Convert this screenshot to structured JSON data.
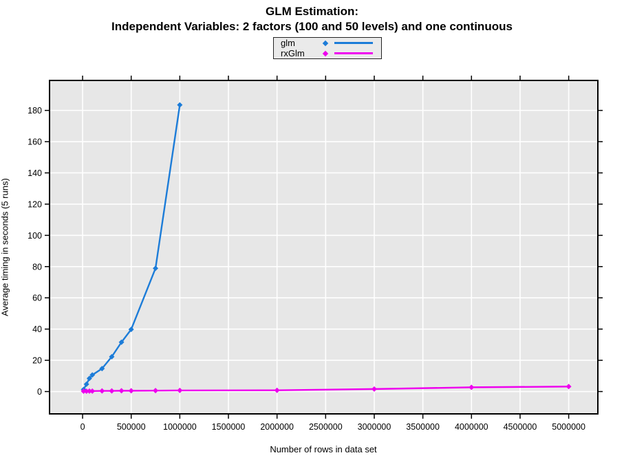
{
  "figure": {
    "title_line1": "GLM Estimation:",
    "title_line2": "Independent Variables: 2 factors (100 and 50 levels) and one continuous"
  },
  "legend": {
    "position": "top-center",
    "items": [
      {
        "label": "glm",
        "color": "#1c7cd8",
        "marker": "diamond-icon"
      },
      {
        "label": "rxGlm",
        "color": "#ee00ee",
        "marker": "diamond-icon"
      }
    ]
  },
  "chart_data": {
    "type": "line",
    "title": "GLM Estimation: Independent Variables: 2 factors (100 and 50 levels) and one continuous",
    "xlabel": "Number of rows in data set",
    "ylabel": "Average timing in seconds (5 runs)",
    "panel_bg": "#e7e7e7",
    "grid_color": "#ffffff",
    "grid": true,
    "x_ticks": [
      0,
      500000,
      1000000,
      1500000,
      2000000,
      2500000,
      3000000,
      3500000,
      4000000,
      4500000,
      5000000
    ],
    "x_tick_labels": [
      "0",
      "500000",
      "1000000",
      "1500000",
      "2000000",
      "2500000",
      "3000000",
      "3500000",
      "4000000",
      "4500000",
      "5000000"
    ],
    "y_ticks": [
      0,
      20,
      40,
      60,
      80,
      100,
      120,
      140,
      160,
      180
    ],
    "y_tick_labels": [
      "0",
      "20",
      "40",
      "60",
      "80",
      "100",
      "120",
      "140",
      "160",
      "180"
    ],
    "x_range": [
      -340000,
      5300000
    ],
    "y_range": [
      -14.3,
      199.2
    ],
    "series": [
      {
        "name": "glm",
        "color": "#1c7cd8",
        "marker": "diamond",
        "x": [
          10000,
          40000,
          70000,
          100000,
          200000,
          300000,
          400000,
          500000,
          750000,
          1000000
        ],
        "y": [
          1.3,
          4.7,
          8.4,
          10.6,
          14.7,
          22.3,
          31.6,
          39.8,
          78.9,
          183.5
        ]
      },
      {
        "name": "rxGlm",
        "color": "#ee00ee",
        "marker": "diamond",
        "x": [
          10000,
          40000,
          70000,
          100000,
          200000,
          300000,
          400000,
          500000,
          750000,
          1000000,
          2000000,
          3000000,
          4000000,
          5000000
        ],
        "y": [
          0.2,
          0.2,
          0.3,
          0.3,
          0.4,
          0.4,
          0.5,
          0.5,
          0.6,
          0.7,
          0.8,
          1.6,
          2.7,
          3.2
        ]
      }
    ]
  }
}
